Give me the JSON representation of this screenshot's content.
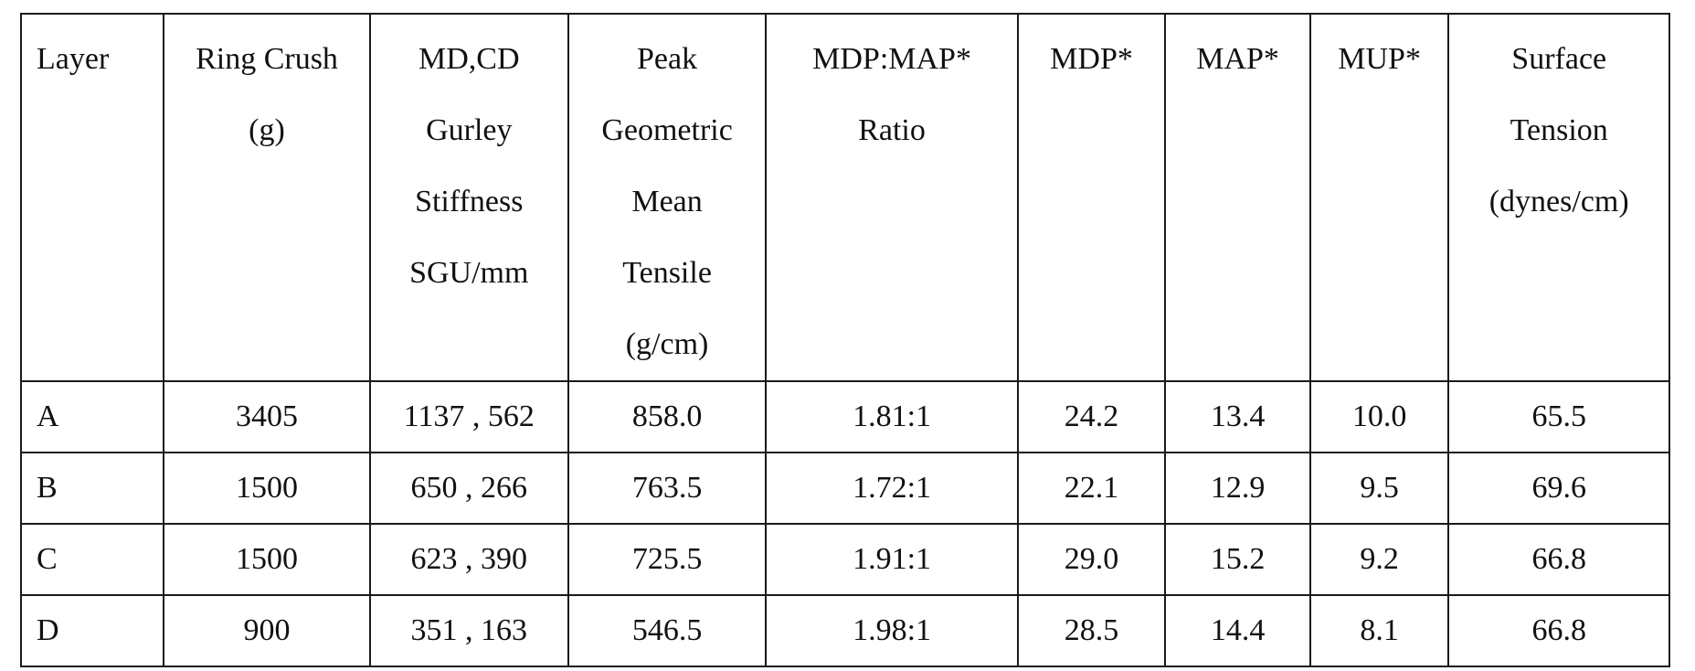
{
  "table": {
    "headers": [
      {
        "id": "layer",
        "lines": [
          "Layer"
        ]
      },
      {
        "id": "ring-crush",
        "lines": [
          "Ring Crush",
          "(g)"
        ]
      },
      {
        "id": "gurley-stiffness",
        "lines": [
          "MD,CD",
          "Gurley",
          "Stiffness",
          "SGU/mm"
        ]
      },
      {
        "id": "peak-gmt",
        "lines": [
          "Peak",
          "Geometric",
          "Mean",
          "Tensile",
          "(g/cm)"
        ]
      },
      {
        "id": "mdp-map-ratio",
        "lines": [
          "MDP:MAP*",
          "Ratio"
        ]
      },
      {
        "id": "mdp",
        "lines": [
          "MDP*"
        ]
      },
      {
        "id": "map",
        "lines": [
          "MAP*"
        ]
      },
      {
        "id": "mup",
        "lines": [
          "MUP*"
        ]
      },
      {
        "id": "surface-tension",
        "lines": [
          "Surface",
          "Tension",
          "(dynes/cm)"
        ]
      }
    ],
    "rows": [
      [
        "A",
        "3405",
        "1137 , 562",
        "858.0",
        "1.81:1",
        "24.2",
        "13.4",
        "10.0",
        "65.5"
      ],
      [
        "B",
        "1500",
        "650 , 266",
        "763.5",
        "1.72:1",
        "22.1",
        "12.9",
        "9.5",
        "69.6"
      ],
      [
        "C",
        "1500",
        "623 , 390",
        "725.5",
        "1.91:1",
        "29.0",
        "15.2",
        "9.2",
        "66.8"
      ],
      [
        "D",
        "900",
        "351 , 163",
        "546.5",
        "1.98:1",
        "28.5",
        "14.4",
        "8.1",
        "66.8"
      ]
    ]
  }
}
